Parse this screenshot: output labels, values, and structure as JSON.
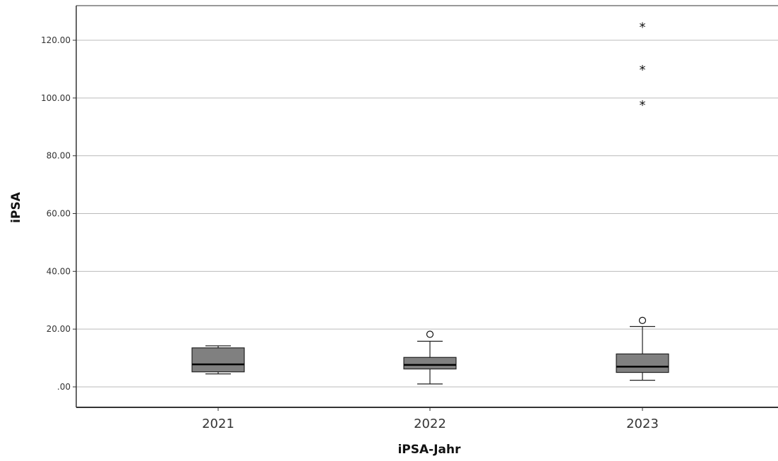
{
  "chart_data": {
    "type": "boxplot",
    "title": "",
    "xlabel": "iPSA-Jahr",
    "ylabel": "iPSA",
    "ylim": [
      -7,
      132
    ],
    "yticks": [
      {
        "value": 0,
        "label": ".00"
      },
      {
        "value": 20,
        "label": "20.00"
      },
      {
        "value": 40,
        "label": "40.00"
      },
      {
        "value": 60,
        "label": "60.00"
      },
      {
        "value": 80,
        "label": "80.00"
      },
      {
        "value": 100,
        "label": "100.00"
      },
      {
        "value": 120,
        "label": "120.00"
      }
    ],
    "categories": [
      "2021",
      "2022",
      "2023"
    ],
    "boxes": [
      {
        "category": "2021",
        "whisker_low": 4.5,
        "q1": 5.2,
        "median": 7.8,
        "q3": 13.5,
        "whisker_high": 14.2,
        "outliers": [],
        "extremes": []
      },
      {
        "category": "2022",
        "whisker_low": 1.0,
        "q1": 6.2,
        "median": 7.6,
        "q3": 10.2,
        "whisker_high": 15.8,
        "outliers": [
          18.2
        ],
        "extremes": []
      },
      {
        "category": "2023",
        "whisker_low": 2.3,
        "q1": 5.0,
        "median": 7.0,
        "q3": 11.4,
        "whisker_high": 20.9,
        "outliers": [
          23.0
        ],
        "extremes": [
          97.8,
          110.0,
          124.8
        ]
      }
    ],
    "grid": true,
    "colors": {
      "box_fill": "#808080",
      "box_stroke": "#222222",
      "grid": "#bbbbbb",
      "axis": "#333333"
    }
  }
}
